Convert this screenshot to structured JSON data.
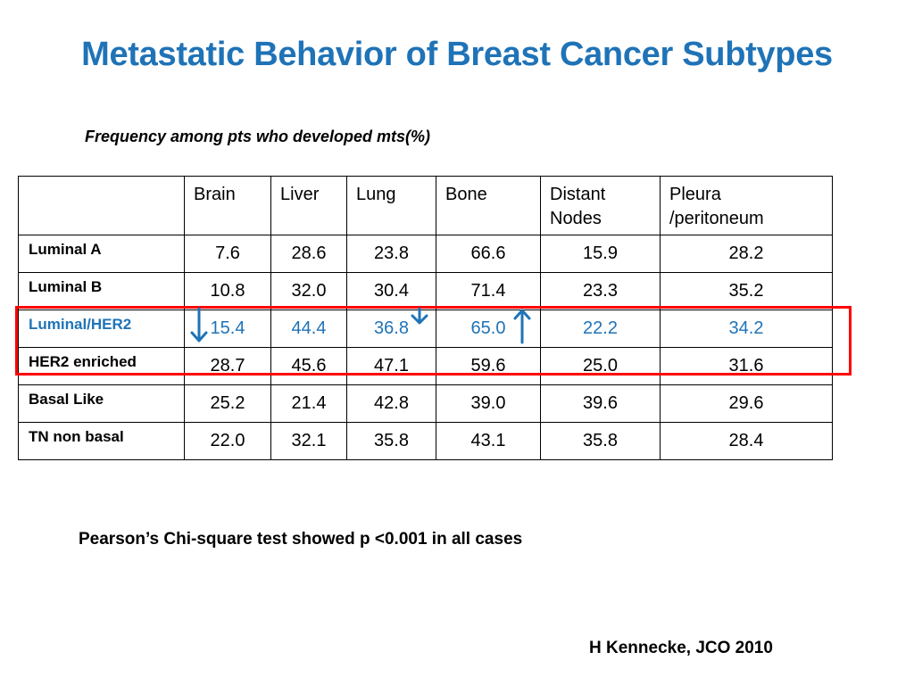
{
  "slide": {
    "title": "Metastatic Behavior of Breast Cancer Subtypes",
    "subtitle": "Frequency among pts who developed mts(%)",
    "footnote": "Pearson’s Chi-square test showed p <0.001 in all cases",
    "citation": "H Kennecke, JCO 2010",
    "accent_color": "#1f73b7",
    "highlight_color": "#ff0000"
  },
  "table": {
    "columns": {
      "brain": "Brain",
      "liver": "Liver",
      "lung": "Lung",
      "bone": "Bone",
      "distant_line1": "Distant",
      "distant_line2": "Nodes",
      "pleura_line1": "Pleura",
      "pleura_line2": "/peritoneum"
    },
    "rows": [
      {
        "label": "Luminal A",
        "values": [
          "7.6",
          "28.6",
          "23.8",
          "66.6",
          "15.9",
          "28.2"
        ]
      },
      {
        "label": "Luminal B",
        "values": [
          "10.8",
          "32.0",
          "30.4",
          "71.4",
          "23.3",
          "35.2"
        ]
      },
      {
        "label": "Luminal/HER2",
        "values": [
          "15.4",
          "44.4",
          "36.8",
          "65.0",
          "22.2",
          "34.2"
        ]
      },
      {
        "label": "HER2 enriched",
        "values": [
          "28.7",
          "45.6",
          "47.1",
          "59.6",
          "25.0",
          "31.6"
        ]
      },
      {
        "label": "Basal Like",
        "values": [
          "25.2",
          "21.4",
          "42.8",
          "39.0",
          "39.6",
          "29.6"
        ]
      },
      {
        "label": "TN non basal",
        "values": [
          "22.0",
          "32.1",
          "35.8",
          "43.1",
          "35.8",
          "28.4"
        ]
      }
    ]
  },
  "annotations": {
    "brain_arrow": "down-arrow",
    "lung_arrow": "down-arrow",
    "bone_arrow": "up-arrow"
  }
}
